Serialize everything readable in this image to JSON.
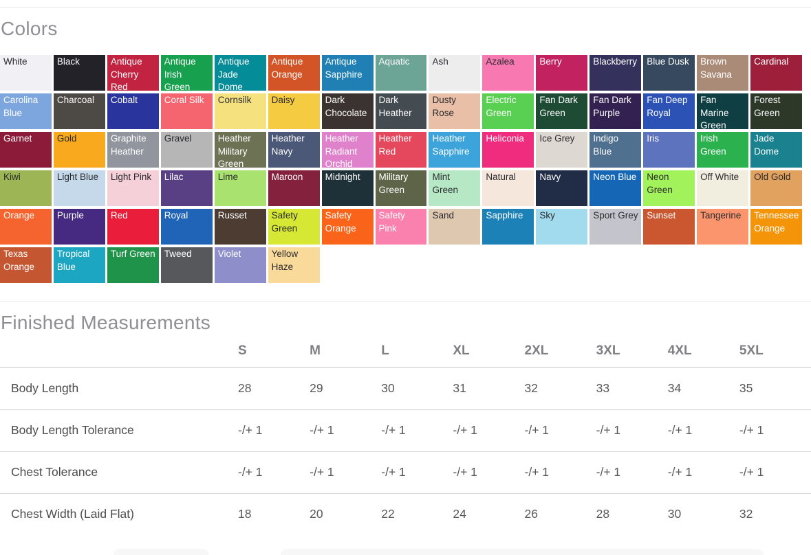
{
  "colors_section": {
    "title": "Colors",
    "swatches": [
      {
        "name": "White",
        "bg": "#f1f0f5",
        "text": "dark"
      },
      {
        "name": "Black",
        "bg": "#232228",
        "text": "light"
      },
      {
        "name": "Antique Cherry Red",
        "bg": "#c22340",
        "text": "light"
      },
      {
        "name": "Antique Irish Green",
        "bg": "#17a04d",
        "text": "light"
      },
      {
        "name": "Antique Jade Dome",
        "bg": "#058c99",
        "text": "light"
      },
      {
        "name": "Antique Orange",
        "bg": "#d35527",
        "text": "light"
      },
      {
        "name": "Antique Sapphire",
        "bg": "#2080b3",
        "text": "light"
      },
      {
        "name": "Aquatic",
        "bg": "#6ca495",
        "text": "light"
      },
      {
        "name": "Ash",
        "bg": "#ededee",
        "text": "dark"
      },
      {
        "name": "Azalea",
        "bg": "#f878b1",
        "text": "dark"
      },
      {
        "name": "Berry",
        "bg": "#c22260",
        "text": "light"
      },
      {
        "name": "Blackberry",
        "bg": "#34315c",
        "text": "light"
      },
      {
        "name": "Blue Dusk",
        "bg": "#36495f",
        "text": "light"
      },
      {
        "name": "Brown Savana",
        "bg": "#aa8b78",
        "text": "light"
      },
      {
        "name": "Cardinal",
        "bg": "#9d1f3a",
        "text": "light"
      },
      {
        "name": "Carolina Blue",
        "bg": "#7da6de",
        "text": "light"
      },
      {
        "name": "Charcoal",
        "bg": "#4d4945",
        "text": "light"
      },
      {
        "name": "Cobalt",
        "bg": "#29349c",
        "text": "light"
      },
      {
        "name": "Coral Silk",
        "bg": "#f4656f",
        "text": "light"
      },
      {
        "name": "Cornsilk",
        "bg": "#f6e17f",
        "text": "dark"
      },
      {
        "name": "Daisy",
        "bg": "#f5cb42",
        "text": "dark"
      },
      {
        "name": "Dark Chocolate",
        "bg": "#3b332f",
        "text": "light"
      },
      {
        "name": "Dark Heather",
        "bg": "#444c52",
        "text": "light"
      },
      {
        "name": "Dusty Rose",
        "bg": "#e9bfa7",
        "text": "dark"
      },
      {
        "name": "Electric Green",
        "bg": "#5ad052",
        "text": "light"
      },
      {
        "name": "Fan Dark Green",
        "bg": "#1d4b34",
        "text": "light"
      },
      {
        "name": "Fan Dark Purple",
        "bg": "#332152",
        "text": "light"
      },
      {
        "name": "Fan Deep Royal",
        "bg": "#2c52b6",
        "text": "light"
      },
      {
        "name": "Fan Marine Green",
        "bg": "#0f3f42",
        "text": "light"
      },
      {
        "name": "Forest Green",
        "bg": "#2d3829",
        "text": "light"
      },
      {
        "name": "Garnet",
        "bg": "#8c1b39",
        "text": "light"
      },
      {
        "name": "Gold",
        "bg": "#f8a91d",
        "text": "dark"
      },
      {
        "name": "Graphite Heather",
        "bg": "#90959e",
        "text": "light"
      },
      {
        "name": "Gravel",
        "bg": "#b6b6b6",
        "text": "dark"
      },
      {
        "name": "Heather Military Green",
        "bg": "#6d7254",
        "text": "light"
      },
      {
        "name": "Heather Navy",
        "bg": "#4c5878",
        "text": "light"
      },
      {
        "name": "Heather Radiant Orchid",
        "bg": "#e081cb",
        "text": "light"
      },
      {
        "name": "Heather Red",
        "bg": "#e5475d",
        "text": "light"
      },
      {
        "name": "Heather Sapphire",
        "bg": "#3ca4da",
        "text": "light"
      },
      {
        "name": "Heliconia",
        "bg": "#f02c7e",
        "text": "light"
      },
      {
        "name": "Ice Grey",
        "bg": "#ddd8d2",
        "text": "dark"
      },
      {
        "name": "Indigo Blue",
        "bg": "#50708f",
        "text": "light"
      },
      {
        "name": "Iris",
        "bg": "#5e73be",
        "text": "light"
      },
      {
        "name": "Irish Green",
        "bg": "#2bb24f",
        "text": "light"
      },
      {
        "name": "Jade Dome",
        "bg": "#19828e",
        "text": "light"
      },
      {
        "name": "Kiwi",
        "bg": "#9eb555",
        "text": "dark"
      },
      {
        "name": "Light Blue",
        "bg": "#c5d9ea",
        "text": "dark"
      },
      {
        "name": "Light Pink",
        "bg": "#f6d0d8",
        "text": "dark"
      },
      {
        "name": "Lilac",
        "bg": "#593f84",
        "text": "light"
      },
      {
        "name": "Lime",
        "bg": "#aae270",
        "text": "dark"
      },
      {
        "name": "Maroon",
        "bg": "#84223e",
        "text": "light"
      },
      {
        "name": "Midnight",
        "bg": "#1e3038",
        "text": "light"
      },
      {
        "name": "Military Green",
        "bg": "#5e6448",
        "text": "light"
      },
      {
        "name": "Mint Green",
        "bg": "#b7e8c6",
        "text": "dark"
      },
      {
        "name": "Natural",
        "bg": "#f5e7dc",
        "text": "dark"
      },
      {
        "name": "Navy",
        "bg": "#212c46",
        "text": "light"
      },
      {
        "name": "Neon Blue",
        "bg": "#1666b6",
        "text": "light"
      },
      {
        "name": "Neon Green",
        "bg": "#a2f25c",
        "text": "dark"
      },
      {
        "name": "Off White",
        "bg": "#f2eedf",
        "text": "dark"
      },
      {
        "name": "Old Gold",
        "bg": "#e2a25f",
        "text": "dark"
      },
      {
        "name": "Orange",
        "bg": "#f5632e",
        "text": "light"
      },
      {
        "name": "Purple",
        "bg": "#462980",
        "text": "light"
      },
      {
        "name": "Red",
        "bg": "#ea1e3a",
        "text": "light"
      },
      {
        "name": "Royal",
        "bg": "#1f64b6",
        "text": "light"
      },
      {
        "name": "Russet",
        "bg": "#4c3c32",
        "text": "light"
      },
      {
        "name": "Safety Green",
        "bg": "#d6e734",
        "text": "dark"
      },
      {
        "name": "Safety Orange",
        "bg": "#f9631a",
        "text": "light"
      },
      {
        "name": "Safety Pink",
        "bg": "#fa80ad",
        "text": "light"
      },
      {
        "name": "Sand",
        "bg": "#dec8b0",
        "text": "dark"
      },
      {
        "name": "Sapphire",
        "bg": "#1c81b6",
        "text": "light"
      },
      {
        "name": "Sky",
        "bg": "#a2daee",
        "text": "dark"
      },
      {
        "name": "Sport Grey",
        "bg": "#c4c4cc",
        "text": "dark"
      },
      {
        "name": "Sunset",
        "bg": "#ca5730",
        "text": "light"
      },
      {
        "name": "Tangerine",
        "bg": "#fa956e",
        "text": "dark"
      },
      {
        "name": "Tennessee Orange",
        "bg": "#f49408",
        "text": "light"
      },
      {
        "name": "Texas Orange",
        "bg": "#c45732",
        "text": "light"
      },
      {
        "name": "Tropical Blue",
        "bg": "#1da6c2",
        "text": "light"
      },
      {
        "name": "Turf Green",
        "bg": "#1f934a",
        "text": "light"
      },
      {
        "name": "Tweed",
        "bg": "#56585c",
        "text": "light"
      },
      {
        "name": "Violet",
        "bg": "#8d8eca",
        "text": "light"
      },
      {
        "name": "Yellow Haze",
        "bg": "#fada9a",
        "text": "dark"
      }
    ]
  },
  "measurements_section": {
    "title": "Finished Measurements",
    "sizes": [
      "S",
      "M",
      "L",
      "XL",
      "2XL",
      "3XL",
      "4XL",
      "5XL"
    ],
    "rows": [
      {
        "label": "Body Length",
        "values": [
          "28",
          "29",
          "30",
          "31",
          "32",
          "33",
          "34",
          "35"
        ]
      },
      {
        "label": "Body Length Tolerance",
        "values": [
          "-/+ 1",
          "-/+ 1",
          "-/+ 1",
          "-/+ 1",
          "-/+ 1",
          "-/+ 1",
          "-/+ 1",
          "-/+ 1"
        ]
      },
      {
        "label": "Chest Tolerance",
        "values": [
          "-/+ 1",
          "-/+ 1",
          "-/+ 1",
          "-/+ 1",
          "-/+ 1",
          "-/+ 1",
          "-/+ 1",
          "-/+ 1"
        ]
      },
      {
        "label": "Chest Width (Laid Flat)",
        "values": [
          "18",
          "20",
          "22",
          "24",
          "26",
          "28",
          "30",
          "32"
        ]
      }
    ]
  },
  "swatch_text_colors": {
    "dark": "#2a2a2e",
    "light": "#ffffff"
  }
}
